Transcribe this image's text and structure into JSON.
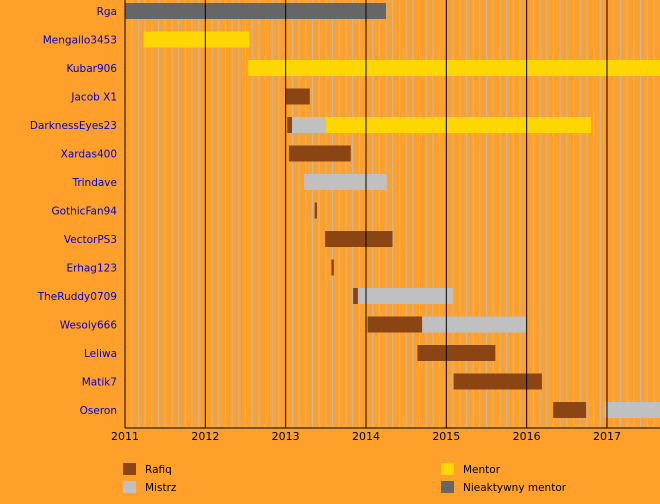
{
  "chart_data": {
    "type": "timeline",
    "x_axis": {
      "range": [
        2011.0,
        2017.66
      ],
      "tick_labels": [
        "2011",
        "2012",
        "2013",
        "2014",
        "2015",
        "2016",
        "2017"
      ],
      "minor_grid": "monthly",
      "major_grid": "yearly"
    },
    "categories": {
      "rafiq": {
        "label": "Rafiq",
        "color": "#8B4513"
      },
      "mistrz": {
        "label": "Mistrz",
        "color": "#C0C0C0"
      },
      "mentor": {
        "label": "Mentor",
        "color": "#FFD700"
      },
      "inactive": {
        "label": "Nieaktywny mentor",
        "color": "#666666"
      }
    },
    "legend_order": [
      "rafiq",
      "mentor",
      "mistrz",
      "inactive"
    ],
    "legend_position": "bottom",
    "rows": [
      {
        "name": "Rga",
        "periods": [
          {
            "start": 2011.0,
            "end": 2014.25,
            "category": "inactive"
          }
        ]
      },
      {
        "name": "Mengallo3453",
        "periods": [
          {
            "start": 2011.23,
            "end": 2012.55,
            "category": "mentor"
          }
        ]
      },
      {
        "name": "Kubar906",
        "periods": [
          {
            "start": 2012.53,
            "end": 2017.66,
            "category": "mentor"
          }
        ]
      },
      {
        "name": "Jacob X1",
        "periods": [
          {
            "start": 2013.0,
            "end": 2013.3,
            "category": "rafiq"
          }
        ]
      },
      {
        "name": "DarknessEyes23",
        "periods": [
          {
            "start": 2013.02,
            "end": 2013.08,
            "category": "rafiq"
          },
          {
            "start": 2013.08,
            "end": 2013.5,
            "category": "mistrz"
          },
          {
            "start": 2013.5,
            "end": 2016.8,
            "category": "mentor"
          }
        ]
      },
      {
        "name": "Xardas400",
        "periods": [
          {
            "start": 2013.04,
            "end": 2013.81,
            "category": "rafiq"
          }
        ]
      },
      {
        "name": "Trindave",
        "periods": [
          {
            "start": 2013.23,
            "end": 2014.26,
            "category": "mistrz"
          }
        ]
      },
      {
        "name": "GothicFan94",
        "periods": [
          {
            "start": 2013.36,
            "end": 2013.39,
            "category": "rafiq"
          }
        ]
      },
      {
        "name": "VectorPS3",
        "periods": [
          {
            "start": 2013.49,
            "end": 2014.33,
            "category": "rafiq"
          }
        ]
      },
      {
        "name": "Erhag123",
        "periods": [
          {
            "start": 2013.57,
            "end": 2013.6,
            "category": "rafiq"
          }
        ]
      },
      {
        "name": "TheRuddy0709",
        "periods": [
          {
            "start": 2013.84,
            "end": 2013.9,
            "category": "rafiq"
          },
          {
            "start": 2013.9,
            "end": 2015.08,
            "category": "mistrz"
          }
        ]
      },
      {
        "name": "Wesoly666",
        "periods": [
          {
            "start": 2014.02,
            "end": 2014.7,
            "category": "rafiq"
          },
          {
            "start": 2014.7,
            "end": 2016.0,
            "category": "mistrz"
          }
        ]
      },
      {
        "name": "Leliwa",
        "periods": [
          {
            "start": 2014.64,
            "end": 2015.61,
            "category": "rafiq"
          }
        ]
      },
      {
        "name": "Matik7",
        "periods": [
          {
            "start": 2015.09,
            "end": 2016.19,
            "category": "rafiq"
          }
        ]
      },
      {
        "name": "Oseron",
        "periods": [
          {
            "start": 2016.33,
            "end": 2016.74,
            "category": "rafiq"
          },
          {
            "start": 2016.97,
            "end": 2017.66,
            "category": "mistrz"
          }
        ]
      }
    ]
  },
  "colors": {
    "background": "#FFA02A",
    "row_label": "#0000CC",
    "axis_text": "#000000",
    "grid_minor": "#BBBBBB",
    "grid_major": "#000000"
  }
}
